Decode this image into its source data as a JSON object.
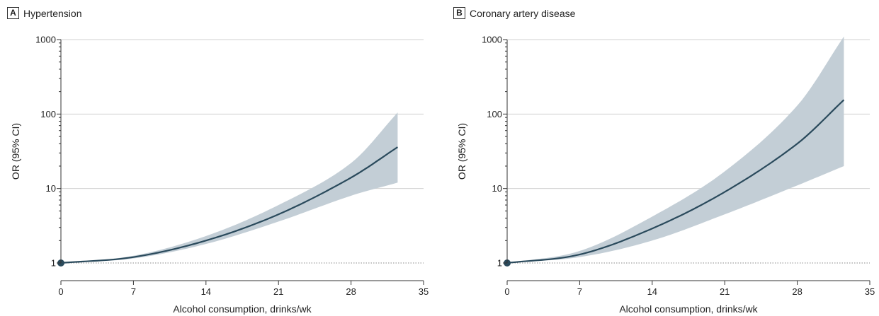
{
  "colors": {
    "band": "#c3ced6",
    "line": "#2a4a5c",
    "grid": "#d0d0d0",
    "axis": "#333333"
  },
  "chart_data": [
    {
      "type": "line",
      "panel_label": "A",
      "title": "Hypertension",
      "xlabel": "Alcohol consumption, drinks/wk",
      "ylabel": "OR (95% CI)",
      "y_scale": "log",
      "xlim": [
        0,
        35
      ],
      "ylim": [
        1,
        1000
      ],
      "x_ticks": [
        0,
        7,
        14,
        21,
        28,
        35
      ],
      "y_ticks": [
        1,
        10,
        100,
        1000
      ],
      "reference_line": 1,
      "reference_point": {
        "x": 0,
        "y": 1
      },
      "x": [
        0,
        7,
        14,
        21,
        28,
        32.5
      ],
      "series": [
        {
          "values": [
            1,
            1.2,
            2.0,
            4.5,
            14,
            36
          ]
        }
      ],
      "ci_lower": [
        1,
        1.15,
        1.8,
        3.6,
        8.0,
        12
      ],
      "ci_upper": [
        1,
        1.25,
        2.3,
        6.0,
        22,
        105
      ]
    },
    {
      "type": "line",
      "panel_label": "B",
      "title": "Coronary artery disease",
      "xlabel": "Alcohol consumption, drinks/wk",
      "ylabel": "OR (95% CI)",
      "y_scale": "log",
      "xlim": [
        0,
        35
      ],
      "ylim": [
        1,
        1000
      ],
      "x_ticks": [
        0,
        7,
        14,
        21,
        28,
        35
      ],
      "y_ticks": [
        1,
        10,
        100,
        1000
      ],
      "reference_line": 1,
      "reference_point": {
        "x": 0,
        "y": 1
      },
      "x": [
        0,
        7,
        14,
        21,
        28,
        32.5
      ],
      "series": [
        {
          "values": [
            1,
            1.3,
            2.9,
            9,
            40,
            155
          ]
        }
      ],
      "ci_lower": [
        1,
        1.2,
        2.0,
        4.5,
        11,
        20
      ],
      "ci_upper": [
        1,
        1.45,
        4.2,
        17,
        130,
        1100
      ]
    }
  ]
}
